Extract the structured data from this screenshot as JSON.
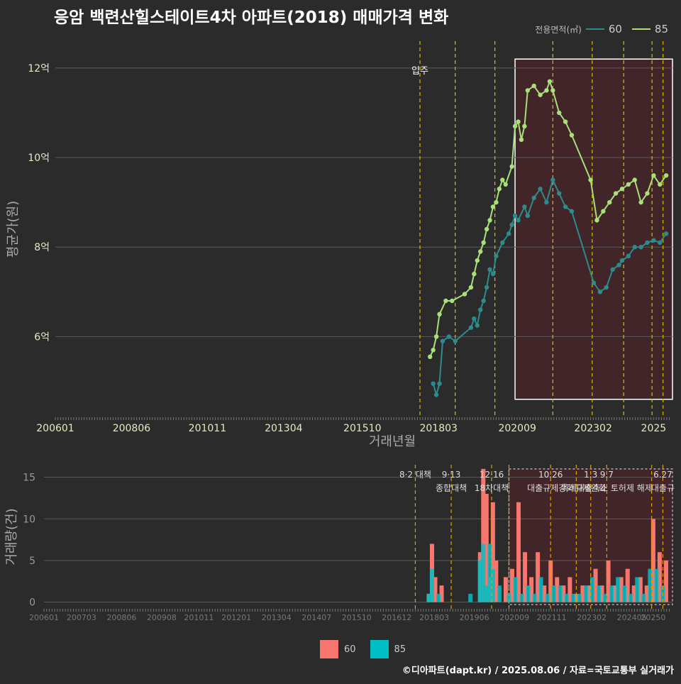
{
  "title": "응암 백련산힐스테이트4차 아파트(2018) 매매가격 변화",
  "footer": "©디아파트(dapt.kr) / 2025.08.06 / 자료=국토교통부 실거래가",
  "colors": {
    "bg": "#2b2b2b",
    "grid": "#5a5a5a",
    "line60": "#2e8b8b",
    "line85": "#a8e07a",
    "bar60": "#f8766d",
    "bar85": "#00bfc4",
    "vline": "#d4c000",
    "vlineBar": "#e0a000",
    "highlight": "#4a2428",
    "text": "#dddddd"
  },
  "legend_top": {
    "title": "전용면적(㎡)",
    "items": [
      "60",
      "85"
    ]
  },
  "legend_bottom": {
    "items": [
      "60",
      "85"
    ]
  },
  "chart_data": [
    {
      "type": "line",
      "title": "응암 백련산힐스테이트4차 아파트(2018) 매매가격 변화",
      "xlabel": "거래년월",
      "ylabel": "평균가(원)",
      "xlim": [
        2006.0,
        2025.6
      ],
      "ylim": [
        4.2,
        12.6
      ],
      "x_ticks": [
        2006.0,
        2008.42,
        2010.83,
        2013.25,
        2015.75,
        2018.17,
        2020.67,
        2023.08,
        2025.0
      ],
      "x_tick_labels": [
        "200601",
        "200806",
        "201011",
        "201304",
        "201510",
        "201803",
        "202009",
        "202302",
        "2025"
      ],
      "y_ticks": [
        6,
        8,
        10,
        12
      ],
      "y_tick_labels": [
        "6억",
        "8억",
        "10억",
        "12억"
      ],
      "vlines": [
        2017.58,
        2018.7,
        2019.96,
        2021.8,
        2023.05,
        2024.05,
        2024.95,
        2025.3
      ],
      "annotations": [
        {
          "text": "입주",
          "x": 2017.58
        }
      ],
      "highlight": {
        "x0": 2020.6,
        "x1": 2025.6,
        "y0": 4.6,
        "y1": 12.2
      },
      "series": [
        {
          "name": "60",
          "x": [
            2018.0,
            2018.1,
            2018.2,
            2018.3,
            2018.5,
            2018.7,
            2019.2,
            2019.3,
            2019.4,
            2019.5,
            2019.6,
            2019.7,
            2019.8,
            2019.9,
            2020.0,
            2020.2,
            2020.4,
            2020.5,
            2020.6,
            2020.7,
            2020.9,
            2021.0,
            2021.2,
            2021.4,
            2021.6,
            2021.8,
            2022.0,
            2022.2,
            2022.4,
            2023.1,
            2023.3,
            2023.5,
            2023.7,
            2023.9,
            2024.0,
            2024.2,
            2024.4,
            2024.6,
            2024.8,
            2025.0,
            2025.2,
            2025.4
          ],
          "values": [
            4.95,
            4.7,
            4.95,
            5.9,
            6.0,
            5.9,
            6.2,
            6.4,
            6.25,
            6.6,
            6.8,
            7.1,
            7.5,
            7.4,
            7.8,
            8.1,
            8.3,
            8.5,
            8.7,
            8.6,
            8.9,
            8.7,
            9.1,
            9.3,
            9.0,
            9.5,
            9.2,
            8.9,
            8.8,
            7.2,
            7.0,
            7.1,
            7.5,
            7.6,
            7.7,
            7.8,
            8.0,
            8.0,
            8.1,
            8.15,
            8.1,
            8.3
          ]
        },
        {
          "name": "85",
          "x": [
            2017.9,
            2018.0,
            2018.1,
            2018.2,
            2018.4,
            2018.6,
            2019.0,
            2019.2,
            2019.3,
            2019.4,
            2019.5,
            2019.6,
            2019.7,
            2019.8,
            2019.9,
            2020.0,
            2020.1,
            2020.2,
            2020.3,
            2020.5,
            2020.6,
            2020.7,
            2020.8,
            2020.9,
            2021.0,
            2021.2,
            2021.4,
            2021.6,
            2021.7,
            2021.8,
            2022.0,
            2022.2,
            2022.4,
            2023.0,
            2023.2,
            2023.4,
            2023.6,
            2023.8,
            2024.0,
            2024.2,
            2024.4,
            2024.6,
            2024.8,
            2025.0,
            2025.2,
            2025.4
          ],
          "values": [
            5.55,
            5.7,
            6.0,
            6.5,
            6.8,
            6.8,
            6.95,
            7.1,
            7.4,
            7.7,
            7.9,
            8.1,
            8.4,
            8.6,
            8.9,
            9.0,
            9.3,
            9.5,
            9.4,
            9.8,
            10.7,
            10.8,
            10.4,
            10.7,
            11.5,
            11.6,
            11.4,
            11.5,
            11.7,
            11.5,
            11.0,
            10.8,
            10.5,
            9.5,
            8.6,
            8.8,
            9.0,
            9.2,
            9.3,
            9.4,
            9.5,
            9.0,
            9.2,
            9.6,
            9.4,
            9.6
          ]
        }
      ]
    },
    {
      "type": "bar",
      "xlabel": "",
      "ylabel": "거래량(건)",
      "xlim": [
        2006.0,
        2025.6
      ],
      "ylim": [
        -0.8,
        16.5
      ],
      "x_ticks": [
        2006.0,
        2007.17,
        2008.42,
        2009.67,
        2010.83,
        2012.0,
        2013.25,
        2014.5,
        2015.75,
        2017.0,
        2018.17,
        2019.42,
        2020.67,
        2021.83,
        2023.08,
        2024.33,
        2025.0
      ],
      "x_tick_labels": [
        "200601",
        "200703",
        "200806",
        "200908",
        "201011",
        "201201",
        "201304",
        "201407",
        "201510",
        "201612",
        "201803",
        "201906",
        "202009",
        "202111",
        "202302",
        "202405",
        "20250"
      ],
      "y_ticks": [
        0,
        5,
        10,
        15
      ],
      "y_tick_labels": [
        "0",
        "5",
        "10",
        "15"
      ],
      "policy_lines": [
        {
          "x": 2017.58,
          "label1": "8·2 대책",
          "label2": ""
        },
        {
          "x": 2018.7,
          "label1": "9·13",
          "label2": "종합대책"
        },
        {
          "x": 2019.96,
          "label1": "12·16",
          "label2": "18차대책"
        },
        {
          "x": 2020.5,
          "label1": "",
          "label2": ""
        },
        {
          "x": 2021.8,
          "label1": "10.26",
          "label2": "대출규제강화"
        },
        {
          "x": 2022.6,
          "label1": "",
          "label2": ""
        },
        {
          "x": 2023.05,
          "label1": "1.3",
          "label2": "규제완화"
        },
        {
          "x": 2023.55,
          "label1": "9.7",
          "label2": "특례대출축소 토허제 해제"
        },
        {
          "x": 2024.95,
          "label1": "",
          "label2": ""
        },
        {
          "x": 2025.3,
          "label1": "6.27",
          "label2": "대출규"
        }
      ],
      "highlight": {
        "x0": 2020.5,
        "x1": 2025.6,
        "y0": -0.3,
        "y1": 16.0
      },
      "series": [
        {
          "name": "60",
          "x": [
            2018.0,
            2018.1,
            2018.2,
            2018.4,
            2019.6,
            2019.7,
            2019.8,
            2019.9,
            2020.0,
            2020.1,
            2020.4,
            2020.6,
            2020.8,
            2021.0,
            2021.2,
            2021.4,
            2021.6,
            2021.8,
            2022.0,
            2022.2,
            2022.4,
            2022.6,
            2022.8,
            2023.0,
            2023.2,
            2023.4,
            2023.6,
            2023.8,
            2024.0,
            2024.2,
            2024.4,
            2024.6,
            2024.8,
            2025.0,
            2025.2,
            2025.4
          ],
          "values": [
            1,
            7,
            3,
            2,
            6,
            16,
            13,
            3,
            12,
            5,
            3,
            4,
            12,
            6,
            3,
            6,
            2,
            5,
            3,
            2,
            3,
            1,
            2,
            2,
            4,
            2,
            5,
            2,
            3,
            4,
            2,
            3,
            2,
            10,
            6,
            5
          ]
        },
        {
          "name": "85",
          "x": [
            2018.0,
            2018.1,
            2018.3,
            2019.3,
            2019.6,
            2019.7,
            2019.8,
            2019.9,
            2020.0,
            2020.2,
            2020.5,
            2020.7,
            2020.9,
            2021.1,
            2021.3,
            2021.5,
            2021.7,
            2021.9,
            2022.1,
            2022.3,
            2022.5,
            2022.7,
            2022.9,
            2023.1,
            2023.3,
            2023.5,
            2023.7,
            2023.9,
            2024.1,
            2024.3,
            2024.5,
            2024.7,
            2024.9,
            2025.1,
            2025.3
          ],
          "values": [
            1,
            4,
            1,
            1,
            5,
            7,
            2,
            7,
            4,
            2,
            1,
            3,
            1,
            2,
            1,
            3,
            1,
            2,
            2,
            1,
            1,
            1,
            2,
            3,
            2,
            1,
            2,
            3,
            2,
            1,
            3,
            1,
            4,
            4,
            2
          ]
        }
      ]
    }
  ]
}
